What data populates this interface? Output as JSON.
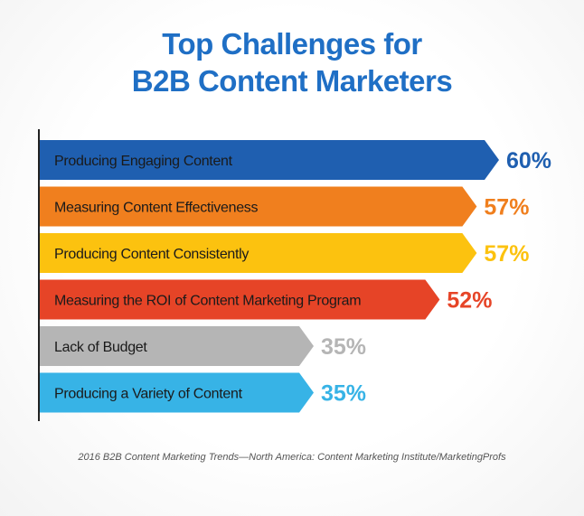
{
  "title": {
    "line1": "Top Challenges for",
    "line2": "B2B Content Marketers"
  },
  "source": "2016 B2B Content Marketing Trends—North America: Content Marketing Institute/MarketingProfs",
  "chart_data": {
    "type": "bar",
    "orientation": "horizontal",
    "title": "Top Challenges for B2B Content Marketers",
    "categories": [
      "Producing Engaging Content",
      "Measuring Content Effectiveness",
      "Producing Content Consistently",
      "Measuring the ROI of Content Marketing Program",
      "Lack of Budget",
      "Producing a Variety of Content"
    ],
    "values": [
      60,
      57,
      57,
      52,
      35,
      35
    ],
    "value_labels": [
      "60%",
      "57%",
      "57%",
      "52%",
      "35%",
      "35%"
    ],
    "colors": [
      "#1f5fb0",
      "#f07f1e",
      "#fcc20f",
      "#e64427",
      "#b5b5b5",
      "#37b3e6"
    ],
    "label_colors": [
      "#1f5fb0",
      "#f07f1e",
      "#fcc20f",
      "#e64427",
      "#b5b5b5",
      "#37b3e6"
    ],
    "xlim": [
      0,
      60
    ],
    "grid": false,
    "legend": "none"
  }
}
